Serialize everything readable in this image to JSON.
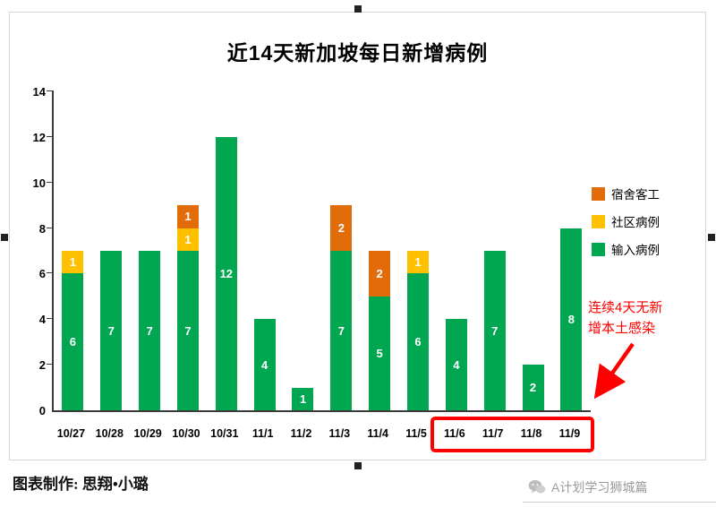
{
  "chart_data": {
    "type": "bar",
    "stacked": true,
    "title": "近14天新加坡每日新增病例",
    "categories": [
      "10/27",
      "10/28",
      "10/29",
      "10/30",
      "10/31",
      "11/1",
      "11/2",
      "11/3",
      "11/4",
      "11/5",
      "11/6",
      "11/7",
      "11/8",
      "11/9"
    ],
    "series": [
      {
        "name": "宿舍客工",
        "color": "#E26B0A",
        "values": [
          0,
          0,
          0,
          1,
          0,
          0,
          0,
          2,
          2,
          0,
          0,
          0,
          0,
          0
        ]
      },
      {
        "name": "社区病例",
        "color": "#FFC000",
        "values": [
          1,
          0,
          0,
          1,
          0,
          0,
          0,
          0,
          0,
          1,
          0,
          0,
          0,
          0
        ]
      },
      {
        "name": "输入病例",
        "color": "#00A650",
        "values": [
          6,
          7,
          7,
          7,
          12,
          4,
          1,
          7,
          5,
          6,
          4,
          7,
          2,
          8
        ]
      }
    ],
    "ylim": [
      0,
      14
    ],
    "yticks": [
      0,
      2,
      4,
      6,
      8,
      10,
      12,
      14
    ],
    "grid": false,
    "legend_position": "right",
    "highlight_box_categories": [
      "11/6",
      "11/7",
      "11/8",
      "11/9"
    ],
    "highlight_color": "#FF0000",
    "annotation": {
      "text": "连续4天无新增本土感染",
      "color": "#FF0000"
    }
  },
  "footer": {
    "credit": "图表制作: 思翔•小璐"
  },
  "brand": {
    "label": "A计划学习狮城篇"
  }
}
